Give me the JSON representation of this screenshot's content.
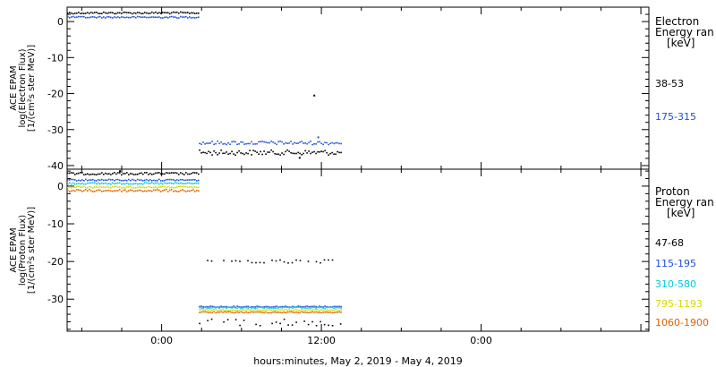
{
  "chart_data": [
    {
      "type": "scatter",
      "panel": "electron",
      "ylabel_lines": [
        "ACE EPAM",
        "log(Electron Flux)",
        "[1/(cm²s ster MeV)]"
      ],
      "ylim": [
        -41,
        4
      ],
      "yticks": [
        0,
        -10,
        -20,
        -30,
        -40
      ],
      "legend_title": [
        "Electron",
        "Energy ran",
        "[keV]"
      ],
      "series": [
        {
          "name": "38-53",
          "color": "#000000",
          "segments": [
            {
              "x": [
                -7.1,
                2.8
              ],
              "y": 2.6,
              "jitter": 0.25
            },
            {
              "x": [
                2.8,
                13.5
              ],
              "y": -36.2,
              "jitter": 0.7
            }
          ],
          "points": [
            {
              "x": 11.4,
              "y": -20.3
            },
            {
              "x": 10.3,
              "y": -37.6
            }
          ]
        },
        {
          "name": "175-315",
          "color": "#1f4fd8",
          "segments": [
            {
              "x": [
                -7.1,
                2.8
              ],
              "y": 1.4,
              "jitter": 0.2
            },
            {
              "x": [
                2.8,
                13.5
              ],
              "y": -33.5,
              "jitter": 0.5
            }
          ],
          "points": [
            {
              "x": 11.7,
              "y": -31.9
            }
          ]
        }
      ]
    },
    {
      "type": "scatter",
      "panel": "proton",
      "ylabel_lines": [
        "ACE EPAM",
        "log(Proton Flux)",
        "[1/(cm²s ster MeV)]"
      ],
      "ylim": [
        -38.5,
        4.5
      ],
      "yticks": [
        0,
        -10,
        -20,
        -30
      ],
      "legend_title": [
        "Proton",
        "Energy ran",
        "[keV]"
      ],
      "series": [
        {
          "name": "47-68",
          "color": "#000000",
          "segments": [
            {
              "x": [
                -7.1,
                2.8
              ],
              "y": 3.5,
              "jitter": 0.3
            },
            {
              "x": [
                2.8,
                13.5
              ],
              "y": -36.0,
              "jitter": 0.9,
              "sparse": true
            },
            {
              "x": [
                3.1,
                12.8
              ],
              "y": -19.9,
              "jitter": 0.5,
              "sparse": true
            }
          ],
          "points": [
            {
              "x": -3.2,
              "y": 4.2
            }
          ]
        },
        {
          "name": "115-195",
          "color": "#1f4fd8",
          "segments": [
            {
              "x": [
                -7.1,
                2.8
              ],
              "y": 1.8,
              "jitter": 0.2
            },
            {
              "x": [
                2.8,
                13.5
              ],
              "y": -31.8,
              "jitter": 0.15
            }
          ]
        },
        {
          "name": "310-580",
          "color": "#00c8e0",
          "segments": [
            {
              "x": [
                -7.1,
                2.8
              ],
              "y": 0.9,
              "jitter": 0.2
            },
            {
              "x": [
                2.8,
                13.5
              ],
              "y": -32.1,
              "jitter": 0.15
            }
          ]
        },
        {
          "name": "795-1193",
          "color": "#d8d800",
          "segments": [
            {
              "x": [
                -7.1,
                2.8
              ],
              "y": -0.1,
              "jitter": 0.2
            },
            {
              "x": [
                2.8,
                13.5
              ],
              "y": -32.7,
              "jitter": 0.15
            }
          ]
        },
        {
          "name": "1060-1900",
          "color": "#e06000",
          "segments": [
            {
              "x": [
                -7.1,
                2.8
              ],
              "y": -1.0,
              "jitter": 0.3
            },
            {
              "x": [
                2.8,
                13.5
              ],
              "y": -33.3,
              "jitter": 0.15
            }
          ]
        }
      ]
    }
  ],
  "x_axis": {
    "xlim": [
      -7.1,
      36.6
    ],
    "major_ticks": [
      0,
      12,
      24,
      36
    ],
    "minor_ticks": [
      -6,
      -3,
      3,
      6,
      9,
      15,
      18,
      21,
      27,
      30,
      33
    ],
    "tick_labels": [
      {
        "x": 0,
        "label": "0:00"
      },
      {
        "x": 12,
        "label": "12:00"
      },
      {
        "x": 24,
        "label": "0:00"
      }
    ],
    "xlabel": "hours:minutes, May  2, 2019 - May  4, 2019"
  }
}
